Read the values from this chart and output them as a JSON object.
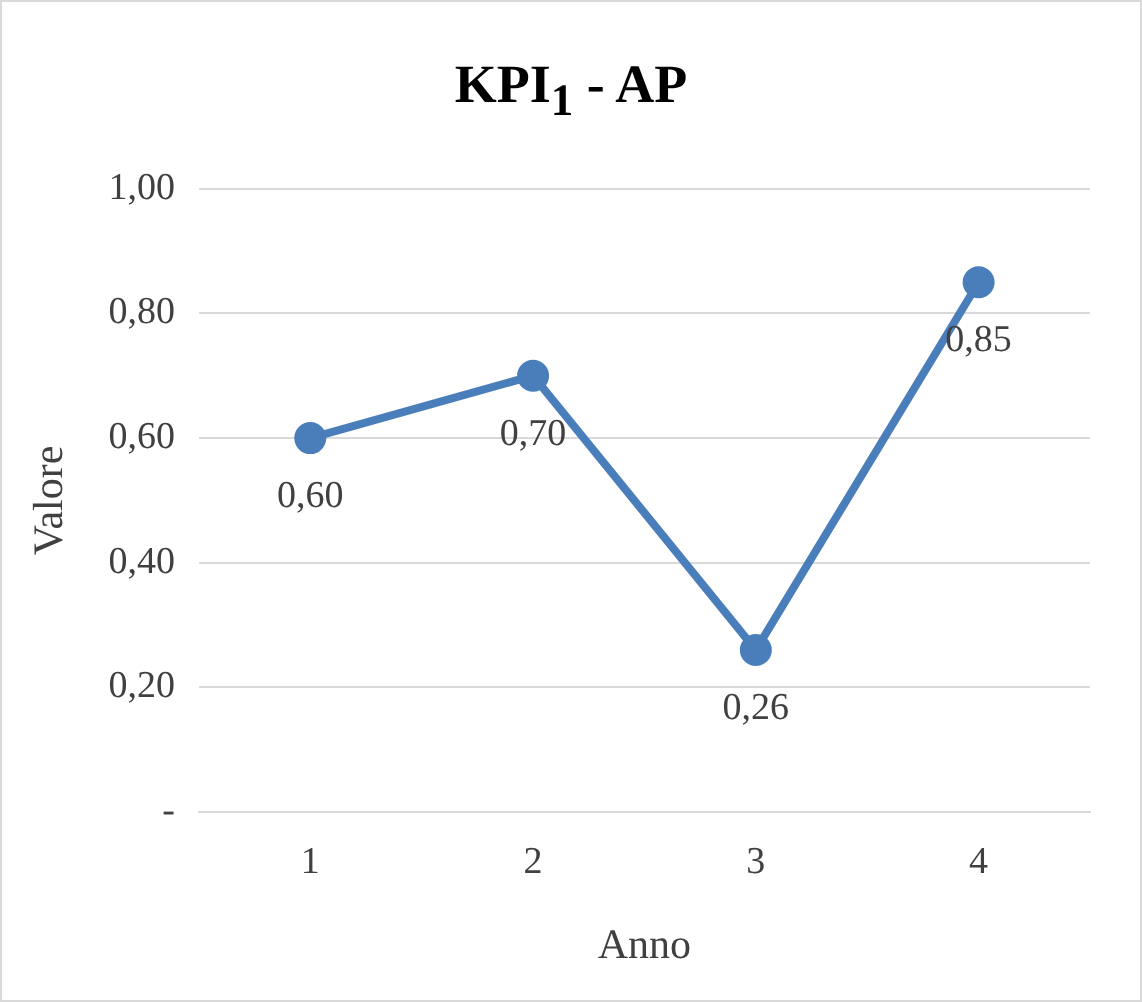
{
  "chart_data": {
    "type": "line",
    "title": "KPI$_{1}$ - AP",
    "xlabel": "Anno",
    "ylabel": "Valore",
    "categories": [
      "1",
      "2",
      "3",
      "4"
    ],
    "series": [
      {
        "color": "#4a7ebb",
        "values": [
          0.6,
          0.7,
          0.26,
          0.85
        ],
        "value_labels": [
          "0,60",
          "0,70",
          "0,26",
          "0,85"
        ]
      }
    ],
    "ylim": [
      0,
      1
    ],
    "yticks": [
      {
        "value": 0,
        "label": "-"
      },
      {
        "value": 0.2,
        "label": "0,20"
      },
      {
        "value": 0.4,
        "label": "0,40"
      },
      {
        "value": 0.6,
        "label": "0,60"
      },
      {
        "value": 0.8,
        "label": "0,80"
      },
      {
        "value": 1,
        "label": "1,00"
      }
    ],
    "grid": "y",
    "legend": false,
    "marker": "circle",
    "line_style": "solid"
  }
}
